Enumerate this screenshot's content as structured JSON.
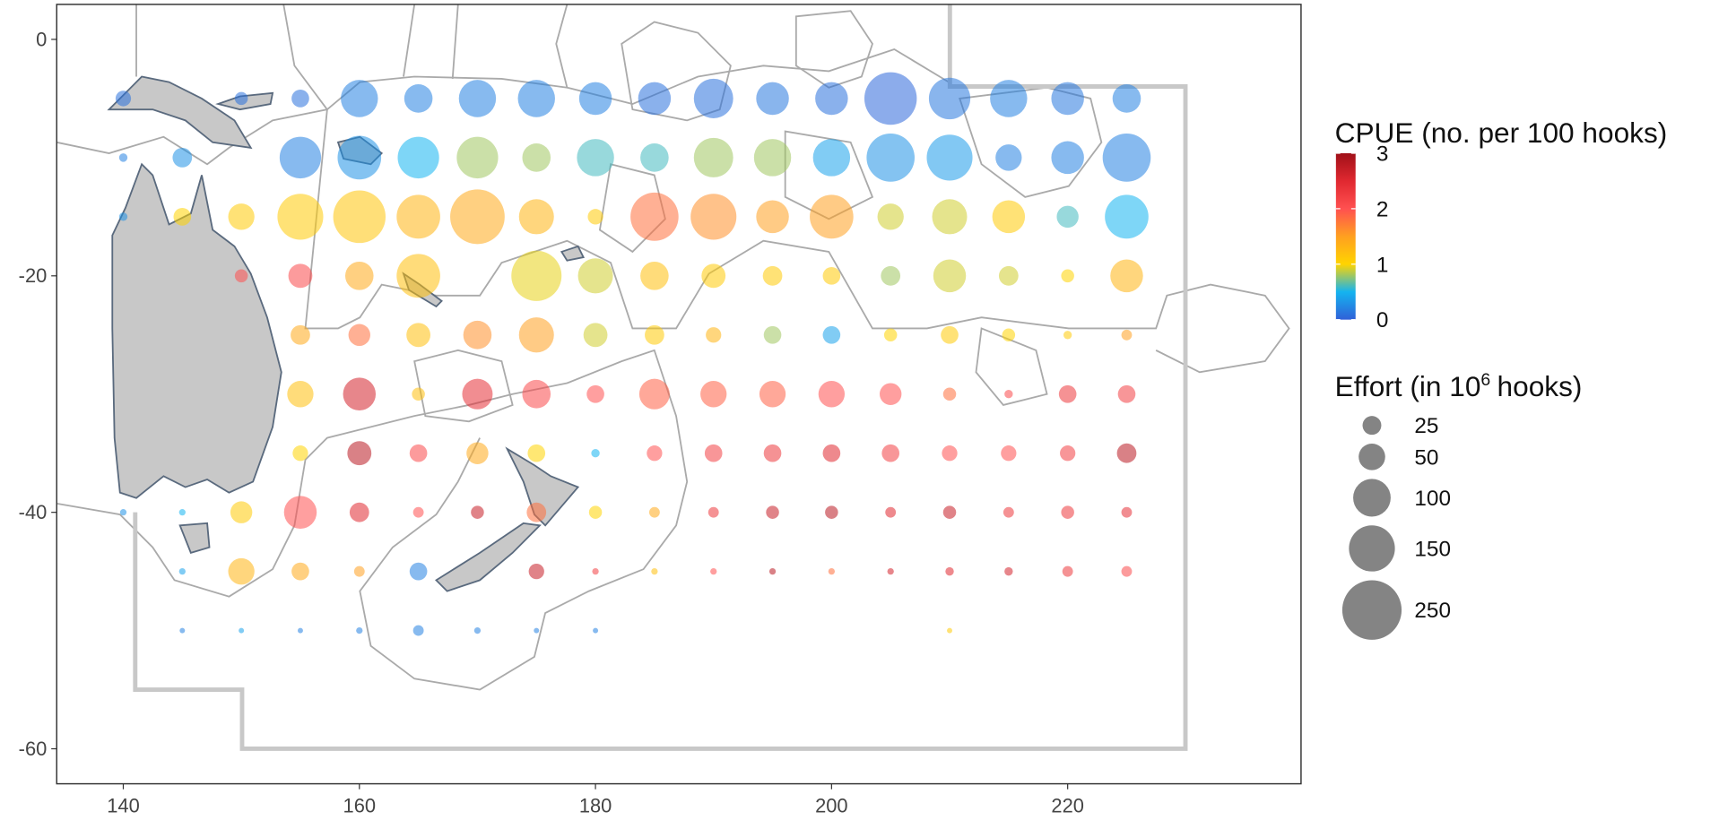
{
  "chart_data": {
    "type": "bubble",
    "xlim": [
      134.36,
      239.77
    ],
    "ylim": [
      -62.96,
      2.96
    ],
    "xticks": [
      140,
      160,
      180,
      200,
      220
    ],
    "yticks": [
      0,
      -20,
      -40,
      -60
    ],
    "color_title": "CPUE (no. per 100 hooks)",
    "color_lim": [
      0,
      3
    ],
    "color_ticks": [
      0,
      1,
      2,
      3
    ],
    "colors": [
      "#3060d8",
      "#14b4f0",
      "#ffd400",
      "#ffa020",
      "#ff5050",
      "#e02830",
      "#a01018"
    ],
    "size_title": "Effort (in 10",
    "size_title_sup": "6",
    "size_title_end": "hooks)",
    "size_legend": [
      25,
      50,
      100,
      150,
      250
    ],
    "size_legend_color": "#777777",
    "series": [
      {
        "y": -5,
        "x": [
          140,
          150,
          155,
          160,
          165,
          170,
          175,
          180,
          185,
          190,
          195,
          200,
          205,
          210,
          215,
          220,
          225
        ],
        "effort": [
          17,
          12,
          22,
          98,
          57,
          98,
          98,
          76,
          76,
          110,
          76,
          76,
          195,
          122,
          98,
          76,
          57
        ],
        "cpue": [
          0.1,
          0.1,
          0.1,
          0.2,
          0.2,
          0.2,
          0.2,
          0.2,
          0.1,
          0.1,
          0.15,
          0.1,
          0.05,
          0.15,
          0.2,
          0.15,
          0.2
        ]
      },
      {
        "y": -10,
        "x": [
          140,
          145,
          155,
          160,
          165,
          170,
          175,
          180,
          185,
          190,
          195,
          200,
          205,
          210,
          215,
          220,
          225
        ],
        "effort": [
          5,
          27,
          122,
          135,
          122,
          122,
          57,
          98,
          57,
          110,
          98,
          98,
          164,
          149,
          49,
          76,
          164
        ],
        "cpue": [
          0.2,
          0.3,
          0.2,
          0.3,
          0.5,
          0.8,
          0.8,
          0.6,
          0.6,
          0.8,
          0.8,
          0.4,
          0.3,
          0.35,
          0.2,
          0.2,
          0.2
        ]
      },
      {
        "y": -15,
        "x": [
          140,
          145,
          150,
          155,
          160,
          165,
          170,
          175,
          180,
          185,
          190,
          195,
          200,
          205,
          210,
          215,
          220,
          225
        ],
        "effort": [
          5,
          22,
          49,
          149,
          195,
          135,
          211,
          87,
          17,
          164,
          149,
          76,
          135,
          49,
          87,
          76,
          34,
          135
        ],
        "cpue": [
          0.3,
          1.0,
          1.1,
          1.1,
          1.15,
          1.3,
          1.4,
          1.3,
          1.1,
          1.8,
          1.6,
          1.5,
          1.5,
          0.9,
          0.9,
          1.1,
          0.6,
          0.5
        ]
      },
      {
        "y": -20,
        "x": [
          150,
          155,
          160,
          165,
          175,
          180,
          185,
          190,
          195,
          200,
          205,
          210,
          215,
          220,
          225
        ],
        "effort": [
          12,
          41,
          57,
          135,
          179,
          87,
          57,
          41,
          27,
          22,
          27,
          76,
          27,
          12,
          76
        ],
        "cpue": [
          2.0,
          2.1,
          1.4,
          1.2,
          0.95,
          0.9,
          1.2,
          1.1,
          1.1,
          1.1,
          0.8,
          0.9,
          0.9,
          1.0,
          1.3
        ]
      },
      {
        "y": -25,
        "x": [
          155,
          160,
          165,
          170,
          175,
          180,
          185,
          190,
          195,
          200,
          205,
          210,
          215,
          220,
          225
        ],
        "effort": [
          27,
          34,
          41,
          57,
          87,
          41,
          27,
          17,
          22,
          22,
          12,
          22,
          12,
          5,
          8
        ],
        "cpue": [
          1.4,
          1.8,
          1.2,
          1.6,
          1.5,
          0.9,
          1.1,
          1.3,
          0.8,
          0.4,
          1.0,
          1.1,
          1.0,
          1.1,
          1.5
        ]
      },
      {
        "y": -30,
        "x": [
          155,
          160,
          165,
          170,
          175,
          180,
          185,
          190,
          195,
          200,
          205,
          210,
          215,
          220,
          225
        ],
        "effort": [
          49,
          76,
          12,
          66,
          57,
          22,
          66,
          49,
          49,
          49,
          34,
          12,
          5,
          22,
          22
        ],
        "cpue": [
          1.2,
          2.6,
          1.2,
          2.4,
          2.1,
          2.0,
          1.9,
          1.9,
          1.9,
          2.0,
          2.0,
          1.8,
          2.1,
          2.3,
          2.2
        ]
      },
      {
        "y": -35,
        "x": [
          155,
          160,
          165,
          170,
          175,
          180,
          185,
          190,
          195,
          200,
          205,
          210,
          215,
          220,
          225
        ],
        "effort": [
          17,
          41,
          22,
          34,
          22,
          5,
          17,
          22,
          22,
          22,
          22,
          17,
          17,
          17,
          27
        ],
        "cpue": [
          1.0,
          2.8,
          2.1,
          1.4,
          1.0,
          0.5,
          2.0,
          2.2,
          2.3,
          2.5,
          2.2,
          2.0,
          2.0,
          2.2,
          2.8
        ]
      },
      {
        "y": -40,
        "x": [
          140,
          145,
          150,
          155,
          160,
          165,
          170,
          175,
          180,
          185,
          190,
          195,
          200,
          205,
          210,
          215,
          220,
          225
        ],
        "effort": [
          3,
          3,
          34,
          76,
          27,
          8,
          12,
          27,
          12,
          8,
          8,
          12,
          12,
          8,
          12,
          8,
          12,
          8
        ],
        "cpue": [
          0.3,
          0.5,
          1.1,
          2.0,
          2.5,
          2.0,
          2.7,
          1.8,
          1.0,
          1.4,
          2.3,
          2.7,
          2.8,
          2.5,
          2.7,
          2.3,
          2.3,
          2.4
        ]
      },
      {
        "y": -45,
        "x": [
          145,
          150,
          155,
          160,
          165,
          175,
          180,
          185,
          190,
          195,
          200,
          205,
          210,
          215,
          220,
          225
        ],
        "effort": [
          3,
          49,
          22,
          8,
          22,
          17,
          3,
          3,
          3,
          3,
          3,
          3,
          5,
          5,
          8,
          8
        ],
        "cpue": [
          0.4,
          1.3,
          1.4,
          1.5,
          0.2,
          2.7,
          2.2,
          1.2,
          2.0,
          2.8,
          1.8,
          2.6,
          2.5,
          2.6,
          2.3,
          2.1
        ]
      },
      {
        "y": -50,
        "x": [
          145,
          150,
          155,
          160,
          165,
          170,
          175,
          180,
          210
        ],
        "effort": [
          2,
          2,
          2,
          3,
          8,
          3,
          2,
          2,
          2
        ],
        "cpue": [
          0.2,
          0.4,
          0.2,
          0.2,
          0.2,
          0.2,
          0.2,
          0.2,
          1.1
        ]
      }
    ]
  }
}
